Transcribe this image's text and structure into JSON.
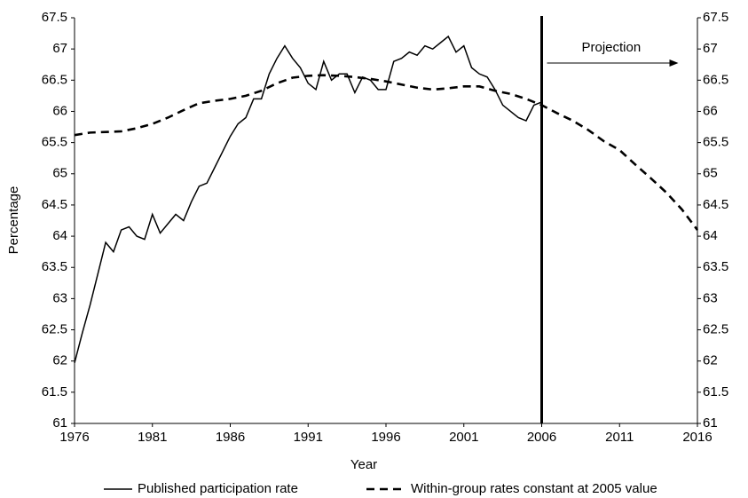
{
  "chart_data": {
    "type": "line",
    "x_label": "Year",
    "y_label": "Percentage",
    "xlim": [
      1976,
      2016
    ],
    "xticks": [
      1976,
      1981,
      1986,
      1991,
      1996,
      2001,
      2006,
      2011,
      2016
    ],
    "ylim": [
      61,
      67.5
    ],
    "yticks": [
      61,
      61.5,
      62,
      62.5,
      63,
      63.5,
      64,
      64.5,
      65,
      65.5,
      66,
      66.5,
      67,
      67.5
    ],
    "y2lim": [
      61,
      67.5
    ],
    "y2ticks": [
      61,
      61.5,
      62,
      62.5,
      63,
      63.5,
      64,
      64.5,
      65,
      65.5,
      66,
      66.5,
      67,
      67.5
    ],
    "vertical_line": 2006,
    "annotation": "Projection",
    "legend": "bottom",
    "series": [
      {
        "name": "Published participation rate",
        "color": "#000000",
        "dash": "solid",
        "x": [
          1976,
          1976.5,
          1977,
          1977.5,
          1978,
          1978.5,
          1979,
          1979.5,
          1980,
          1980.5,
          1981,
          1981.5,
          1982,
          1982.5,
          1983,
          1983.5,
          1984,
          1984.5,
          1985,
          1985.5,
          1986,
          1986.5,
          1987,
          1987.5,
          1988,
          1988.5,
          1989,
          1989.5,
          1990,
          1990.5,
          1991,
          1991.5,
          1992,
          1992.5,
          1993,
          1993.5,
          1994,
          1994.5,
          1995,
          1995.5,
          1996,
          1996.5,
          1997,
          1997.5,
          1998,
          1998.5,
          1999,
          1999.5,
          2000,
          2000.5,
          2001,
          2001.5,
          2002,
          2002.5,
          2003,
          2003.5,
          2004,
          2004.5,
          2005,
          2005.5,
          2006
        ],
        "values": [
          61.97,
          62.45,
          62.9,
          63.4,
          63.9,
          63.75,
          64.1,
          64.15,
          64.0,
          63.95,
          64.35,
          64.05,
          64.2,
          64.35,
          64.25,
          64.55,
          64.8,
          64.85,
          65.1,
          65.35,
          65.6,
          65.8,
          65.9,
          66.2,
          66.2,
          66.6,
          66.85,
          67.05,
          66.85,
          66.7,
          66.45,
          66.35,
          66.8,
          66.5,
          66.6,
          66.6,
          66.3,
          66.55,
          66.5,
          66.35,
          66.35,
          66.8,
          66.85,
          66.95,
          66.9,
          67.05,
          67.0,
          67.1,
          67.2,
          66.95,
          67.05,
          66.7,
          66.6,
          66.55,
          66.35,
          66.1,
          66.0,
          65.9,
          65.85,
          66.1,
          66.15
        ]
      },
      {
        "name": "Within-group rates constant at 2005 value",
        "color": "#000000",
        "dash": "dashed",
        "x": [
          1976,
          1977,
          1978,
          1979,
          1980,
          1981,
          1982,
          1983,
          1984,
          1985,
          1986,
          1987,
          1988,
          1989,
          1990,
          1991,
          1992,
          1993,
          1994,
          1995,
          1996,
          1997,
          1998,
          1999,
          2000,
          2001,
          2002,
          2003,
          2004,
          2005,
          2006,
          2007,
          2008,
          2009,
          2010,
          2011,
          2012,
          2013,
          2014,
          2015,
          2016
        ],
        "values": [
          65.62,
          65.66,
          65.67,
          65.68,
          65.73,
          65.8,
          65.9,
          66.02,
          66.13,
          66.17,
          66.2,
          66.25,
          66.33,
          66.45,
          66.54,
          66.57,
          66.58,
          66.57,
          66.55,
          66.52,
          66.48,
          66.43,
          66.38,
          66.35,
          66.37,
          66.4,
          66.4,
          66.33,
          66.28,
          66.2,
          66.1,
          65.97,
          65.85,
          65.7,
          65.52,
          65.38,
          65.15,
          64.93,
          64.7,
          64.43,
          64.1
        ]
      }
    ]
  }
}
